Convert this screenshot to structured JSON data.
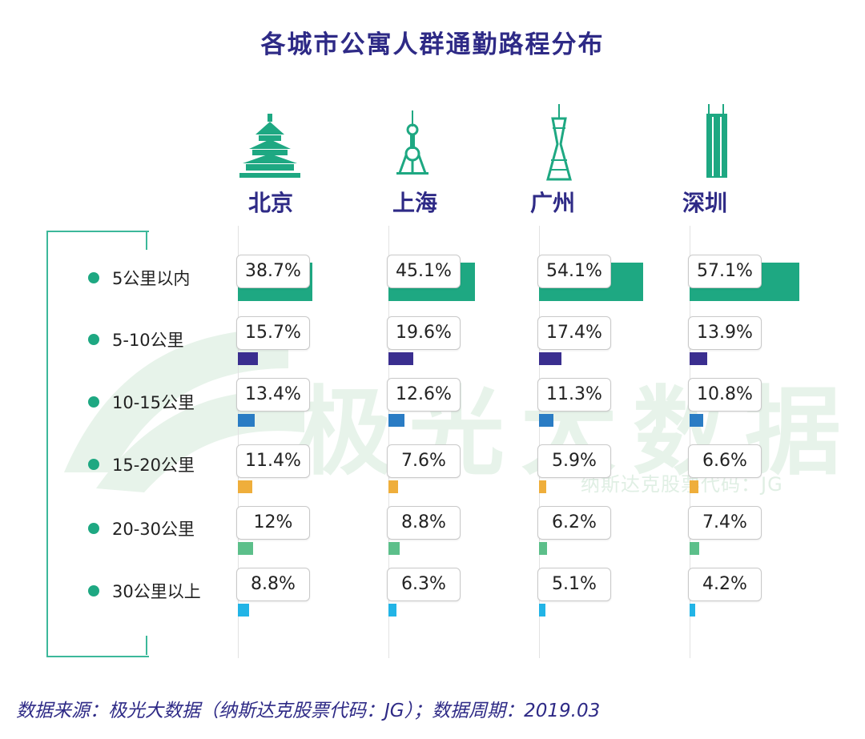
{
  "title": "各城市公寓人群通勤路程分布",
  "watermark": {
    "brand": "极光大数据",
    "code": "纳斯达克股票代码：JG"
  },
  "source": "数据来源：极光大数据（纳斯达克股票代码：JG）；数据周期：2019.03",
  "colors": {
    "title": "#2e2a86",
    "dot": "#1ea882",
    "series": [
      "#1ea882",
      "#3a2e8f",
      "#2a7cc4",
      "#efae3b",
      "#5cbf8a",
      "#22b4e6"
    ]
  },
  "chart_data": {
    "type": "bar",
    "title": "各城市公寓人群通勤路程分布",
    "categories": [
      "5公里以内",
      "5-10公里",
      "10-15公里",
      "15-20公里",
      "20-30公里",
      "30公里以上"
    ],
    "series": [
      {
        "name": "北京",
        "icon": "temple-of-heaven-icon",
        "values": [
          38.7,
          15.7,
          13.4,
          11.4,
          12,
          8.8
        ],
        "labels": [
          "38.7%",
          "15.7%",
          "13.4%",
          "11.4%",
          "12%",
          "8.8%"
        ]
      },
      {
        "name": "上海",
        "icon": "oriental-pearl-tower-icon",
        "values": [
          45.1,
          19.6,
          12.6,
          7.6,
          8.8,
          6.3
        ],
        "labels": [
          "45.1%",
          "19.6%",
          "12.6%",
          "7.6%",
          "8.8%",
          "6.3%"
        ]
      },
      {
        "name": "广州",
        "icon": "canton-tower-icon",
        "values": [
          54.1,
          17.4,
          11.3,
          5.9,
          6.2,
          5.1
        ],
        "labels": [
          "54.1%",
          "17.4%",
          "11.3%",
          "5.9%",
          "6.2%",
          "5.1%"
        ]
      },
      {
        "name": "深圳",
        "icon": "shenzhen-skyscraper-icon",
        "values": [
          57.1,
          13.9,
          10.8,
          6.6,
          7.4,
          4.2
        ],
        "labels": [
          "57.1%",
          "13.9%",
          "10.8%",
          "6.6%",
          "7.4%",
          "4.2%"
        ]
      }
    ],
    "unit": "%"
  }
}
